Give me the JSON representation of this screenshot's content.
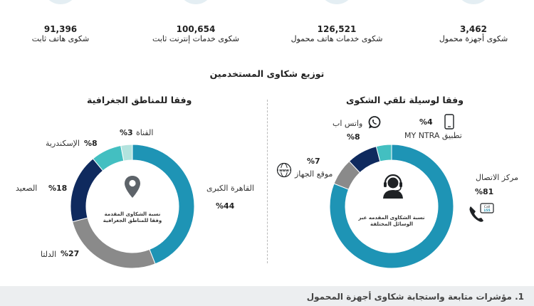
{
  "stats": [
    {
      "value": "91,396",
      "label": "شكوى هاتف ثابت"
    },
    {
      "value": "100,654",
      "label": "شكوى خدمات إنترنت ثابت"
    },
    {
      "value": "126,521",
      "label": "شكوى خدمات هاتف محمول"
    },
    {
      "value": "3,462",
      "label": "شكوى أجهزة محمول"
    }
  ],
  "section_title": "توزيع شكاوى المستخدمين",
  "footer_text": "1. مؤشرات متابعة واستجابة شكاوى أجهزة المحمول",
  "colors": {
    "teal": "#1e94b5",
    "light_teal": "#43bfc1",
    "navy": "#0f2a5e",
    "gray": "#8a8a8a",
    "pale": "#b3e3de"
  },
  "chart_data": [
    {
      "type": "pie",
      "donut": true,
      "title": "وفقا للمناطق الجغرافية",
      "center_text_1": "نسبة الشكاوى المقدمة",
      "center_text_2": "وفقا للمناطق الجغرافية",
      "center_icon": "location-pin-icon",
      "slices": [
        {
          "label": "القاهرة الكبرى",
          "value": 44,
          "value_label": "%44",
          "color": "#1e94b5"
        },
        {
          "label": "الدلتا",
          "value": 27,
          "value_label": "%27",
          "color": "#8a8a8a"
        },
        {
          "label": "الصعيد",
          "value": 18,
          "value_label": "%18",
          "color": "#0f2a5e"
        },
        {
          "label": "الإسكندرية",
          "value": 8,
          "value_label": "%8",
          "color": "#43bfc1"
        },
        {
          "label": "القناة",
          "value": 3,
          "value_label": "%3",
          "color": "#b3e3de"
        }
      ]
    },
    {
      "type": "pie",
      "donut": true,
      "title": "وفقا لوسيلة تلقي الشكوى",
      "center_text_1": "نسبة الشكاوى المقدمه عبر",
      "center_text_2": "الوسائل المختلفة",
      "center_icon": "call-center-agent-icon",
      "slices": [
        {
          "label": "مركز الاتصال",
          "value": 81,
          "value_label": "%81",
          "color": "#1e94b5",
          "icon": "phone-call-icon",
          "icon_text": "Call 155"
        },
        {
          "label": "موقع الجهاز",
          "value": 7,
          "value_label": "%7",
          "color": "#8a8a8a",
          "icon": "globe-www-icon",
          "icon_text": "www"
        },
        {
          "label": "واتس اب",
          "value": 8,
          "value_label": "%8",
          "color": "#0f2a5e",
          "icon": "whatsapp-icon"
        },
        {
          "label": "تطبيق MY NTRA",
          "value": 4,
          "value_label": "%4",
          "color": "#43bfc1",
          "icon": "mobile-phone-icon"
        }
      ]
    }
  ]
}
